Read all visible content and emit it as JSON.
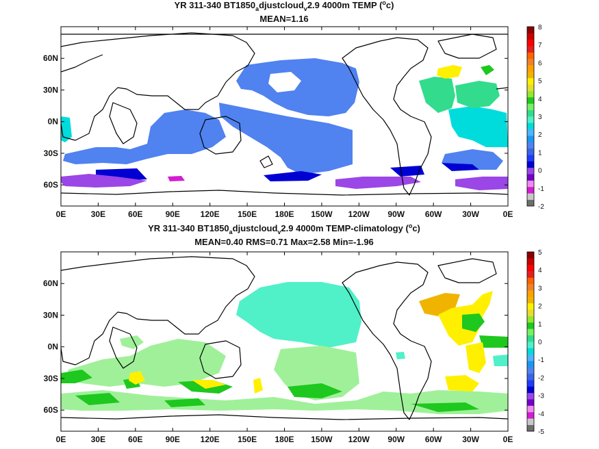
{
  "chart_data": [
    {
      "type": "heatmap",
      "title_parts": [
        "YR 311-340 BT1850",
        "a",
        "djustcloud",
        "v",
        "2.9 4000m TEMP (",
        "o",
        "c)"
      ],
      "subtitle": "MEAN=1.16",
      "xticks": [
        "0E",
        "30E",
        "60E",
        "90E",
        "120E",
        "150E",
        "180E",
        "150W",
        "120W",
        "90W",
        "60W",
        "30W",
        "0E"
      ],
      "yticks": [
        "60N",
        "30N",
        "0N",
        "30S",
        "60S"
      ],
      "colorbar": {
        "ticks": [
          "8",
          "7",
          "6",
          "5",
          "4",
          "3",
          "2",
          "1",
          "0",
          "-1",
          "-2"
        ],
        "min": -2,
        "max": 8,
        "colors": [
          "#6e6e6e",
          "#c8c8c8",
          "#d21ed2",
          "#f08cf0",
          "#7300c8",
          "#9b46e6",
          "#0000d2",
          "#1e3cff",
          "#3c64e6",
          "#5082f0",
          "#1e96f0",
          "#50b4ff",
          "#00dcdc",
          "#50f0c8",
          "#32dc8c",
          "#78f064",
          "#1ec81e",
          "#96e632",
          "#e6dc32",
          "#fff000",
          "#f0b400",
          "#ffa000",
          "#f08228",
          "#ff6400",
          "#e61e1e",
          "#ff0000",
          "#c80000",
          "#8c0000"
        ]
      },
      "regions": [
        {
          "color": "#5082f0",
          "label": "north pacific"
        },
        {
          "color": "#5082f0",
          "label": "south pacific"
        },
        {
          "color": "#5082f0",
          "label": "indian ocean"
        },
        {
          "color": "#5082f0",
          "label": "south atlantic"
        },
        {
          "color": "#32dc8c",
          "label": "north atlantic east"
        },
        {
          "color": "#32dc8c",
          "label": "north atlantic gulf"
        },
        {
          "color": "#fff000",
          "label": "labrador"
        },
        {
          "color": "#00dcdc",
          "label": "tropical atlantic"
        },
        {
          "color": "#00dcdc",
          "label": "west africa"
        },
        {
          "color": "#9b46e6",
          "label": "southern ocean"
        },
        {
          "color": "#0000d2",
          "label": "southern ocean deep"
        }
      ]
    },
    {
      "type": "heatmap",
      "title_parts": [
        "YR 311-340 BT1850",
        "a",
        "djustcloud",
        "v",
        "2.9 4000m TEMP-climatology (",
        "o",
        "c)"
      ],
      "subtitle": "MEAN=0.40   RMS=0.71   Max=2.58   Min=-1.96",
      "xticks": [
        "0E",
        "30E",
        "60E",
        "90E",
        "120E",
        "150E",
        "180E",
        "150W",
        "120W",
        "90W",
        "60W",
        "30W",
        "0E"
      ],
      "yticks": [
        "60N",
        "30N",
        "0N",
        "30S",
        "60S"
      ],
      "colorbar": {
        "ticks": [
          "5",
          "4",
          "3",
          "2",
          "1",
          "0",
          "-1",
          "-2",
          "-3",
          "-4",
          "-5"
        ],
        "min": -5,
        "max": 5,
        "colors": [
          "#6e6e6e",
          "#c8c8c8",
          "#d21ed2",
          "#f08cf0",
          "#7300c8",
          "#9b46e6",
          "#0000d2",
          "#1e3cff",
          "#3c64e6",
          "#5082f0",
          "#1e96f0",
          "#50b4ff",
          "#00dcdc",
          "#50f0c8",
          "#32dc8c",
          "#78f064",
          "#1ec81e",
          "#96e632",
          "#e6dc32",
          "#fff000",
          "#f0b400",
          "#ffa000",
          "#f08228",
          "#ff6400",
          "#e61e1e",
          "#ff0000",
          "#c80000",
          "#8c0000"
        ]
      },
      "regions": [
        {
          "color": "#50f0c8",
          "label": "north pacific"
        },
        {
          "color": "#a0f09a",
          "label": "south pacific"
        },
        {
          "color": "#a0f09a",
          "label": "indian ocean"
        },
        {
          "color": "#1ec81e",
          "label": "southern ocean"
        },
        {
          "color": "#f0b400",
          "label": "north atlantic orange"
        },
        {
          "color": "#fff000",
          "label": "north atlantic yellow"
        },
        {
          "color": "#1ec81e",
          "label": "atlantic green"
        },
        {
          "color": "#fff000",
          "label": "south atlantic yellow"
        }
      ]
    }
  ]
}
